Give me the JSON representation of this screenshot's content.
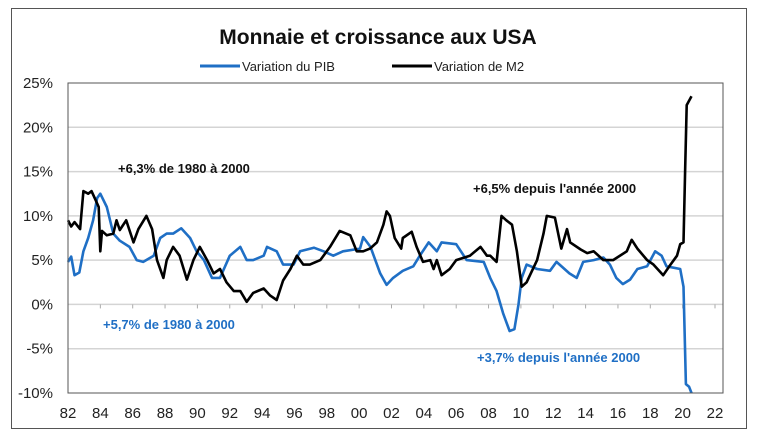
{
  "chart_data": {
    "type": "line",
    "title": "Monnaie et croissance aux USA",
    "xlabel": "",
    "ylabel": "",
    "xlim": [
      1982,
      2022
    ],
    "ylim": [
      -10,
      25
    ],
    "grid": true,
    "legend_placement": "top-center",
    "x_tick_labels": [
      "82",
      "84",
      "86",
      "88",
      "90",
      "92",
      "94",
      "96",
      "98",
      "00",
      "02",
      "04",
      "06",
      "08",
      "10",
      "12",
      "14",
      "16",
      "18",
      "20",
      "22"
    ],
    "y_tick_labels": [
      "25%",
      "20%",
      "15%",
      "10%",
      "5%",
      "0%",
      "-5%",
      "-10%"
    ],
    "y_tick_values": [
      25,
      20,
      15,
      10,
      5,
      0,
      -5,
      -10
    ],
    "series": [
      {
        "name": "Variation du PIB",
        "color": "#1f6fc5",
        "x": [
          1982.0,
          1982.2,
          1982.4,
          1982.7,
          1982.95,
          1983.25,
          1983.55,
          1983.8,
          1984.0,
          1984.4,
          1984.8,
          1985.2,
          1985.8,
          1986.25,
          1986.65,
          1987.3,
          1987.7,
          1988.1,
          1988.5,
          1989.0,
          1989.55,
          1989.95,
          1990.4,
          1990.9,
          1991.4,
          1992.0,
          1992.65,
          1993.05,
          1993.45,
          1994.1,
          1994.3,
          1994.9,
          1995.3,
          1995.95,
          1996.35,
          1997.2,
          1997.8,
          1998.4,
          1999.0,
          2000.05,
          2000.25,
          2000.7,
          2000.9,
          2001.3,
          2001.7,
          2002.1,
          2002.7,
          2003.35,
          2003.75,
          2004.3,
          2004.8,
          2005.1,
          2006.0,
          2006.65,
          2007.7,
          2008.1,
          2008.5,
          2008.9,
          2009.3,
          2009.6,
          2009.85,
          2010.05,
          2010.35,
          2011.0,
          2011.8,
          2012.2,
          2013.0,
          2013.45,
          2013.85,
          2014.5,
          2015.1,
          2015.5,
          2015.9,
          2016.3,
          2016.75,
          2017.2,
          2017.8,
          2018.3,
          2018.7,
          2019.0,
          2019.85,
          2020.05,
          2020.2,
          2020.4,
          2020.55
        ],
        "values": [
          4.8,
          5.4,
          3.3,
          3.6,
          6,
          7.5,
          9.5,
          12,
          12.5,
          11,
          8,
          7.2,
          6.5,
          5,
          4.8,
          5.5,
          7.5,
          8,
          8,
          8.6,
          7.5,
          6,
          5,
          3,
          3,
          5.5,
          6.5,
          5,
          5,
          5.5,
          6.5,
          6,
          4.5,
          4.5,
          6,
          6.4,
          6,
          5.5,
          6,
          6.3,
          7.6,
          6.5,
          5.5,
          3.5,
          2.2,
          3,
          3.8,
          4.3,
          5.5,
          7,
          6,
          7,
          6.8,
          5,
          4.8,
          3,
          1.5,
          -1,
          -3,
          -2.8,
          0,
          3,
          4.5,
          4,
          3.8,
          4.8,
          3.5,
          3,
          4.8,
          5,
          5.3,
          4.5,
          3,
          2.3,
          2.8,
          4,
          4.3,
          6,
          5.5,
          4.3,
          4,
          2,
          -9,
          -9.3,
          -10
        ]
      },
      {
        "name": "Variation de M2",
        "color": "#000000",
        "x": [
          1982.0,
          1982.2,
          1982.4,
          1982.75,
          1982.95,
          1983.25,
          1983.45,
          1983.65,
          1983.9,
          1984.0,
          1984.1,
          1984.4,
          1984.8,
          1985.0,
          1985.2,
          1985.6,
          1986.05,
          1986.35,
          1986.85,
          1987.2,
          1987.5,
          1987.9,
          1988.1,
          1988.5,
          1988.9,
          1989.35,
          1989.75,
          1990.15,
          1990.6,
          1991.0,
          1991.4,
          1991.8,
          1992.25,
          1992.65,
          1993.05,
          1993.45,
          1994.1,
          1994.5,
          1994.9,
          1995.3,
          1995.75,
          1996.15,
          1996.55,
          1996.95,
          1997.6,
          1998.2,
          1998.8,
          1999.45,
          1999.85,
          2000.25,
          2000.67,
          2001.1,
          2001.5,
          2001.7,
          2001.9,
          2002.2,
          2002.6,
          2002.7,
          2003.25,
          2003.55,
          2003.95,
          2004.4,
          2004.6,
          2004.8,
          2005.1,
          2005.6,
          2006.0,
          2006.85,
          2007.5,
          2007.9,
          2008.1,
          2008.5,
          2008.8,
          2009.1,
          2009.45,
          2009.75,
          2010.05,
          2010.35,
          2011.0,
          2011.4,
          2011.6,
          2012.1,
          2012.5,
          2012.85,
          2013.05,
          2013.7,
          2014.1,
          2014.5,
          2015.1,
          2015.7,
          2016.55,
          2016.85,
          2017.2,
          2017.8,
          2018.2,
          2018.8,
          2019.25,
          2019.65,
          2019.85,
          2020.05,
          2020.15,
          2020.25,
          2020.55
        ],
        "values": [
          9.5,
          8.8,
          9.3,
          8.5,
          12.8,
          12.5,
          12.8,
          12,
          11,
          6,
          8.3,
          7.8,
          8,
          9.5,
          8.4,
          9.5,
          7,
          8.5,
          10,
          8.5,
          5,
          3,
          5,
          6.5,
          5.5,
          2.8,
          5,
          6.5,
          5,
          3.5,
          4,
          2.5,
          1.5,
          1.5,
          0.3,
          1.3,
          1.8,
          1,
          0.5,
          2.7,
          4,
          5.5,
          4.5,
          4.5,
          5,
          6.5,
          8.3,
          7.8,
          6,
          6,
          6.3,
          7,
          9,
          10.5,
          10,
          7.5,
          6.3,
          7.5,
          8.2,
          6.5,
          4.8,
          5,
          4,
          5,
          3.3,
          4,
          5,
          5.5,
          6.5,
          5.5,
          5.5,
          4.8,
          10,
          9.5,
          9,
          6,
          2,
          2.5,
          5,
          8,
          10,
          9.8,
          6.3,
          8.5,
          7,
          6.2,
          5.8,
          6,
          5,
          5,
          6,
          7.3,
          6.3,
          5,
          4.5,
          3.3,
          4.5,
          5.5,
          6.8,
          7,
          15,
          22.5,
          23.5
        ]
      }
    ],
    "annotations": [
      {
        "text": "+6,3% de 1980 à 2000",
        "color": "#111111"
      },
      {
        "text": "+5,7% de 1980 à 2000",
        "color": "#1f6fc5"
      },
      {
        "text": "+6,5% depuis  l'année 2000",
        "color": "#111111"
      },
      {
        "text": "+3,7% depuis  l'année 2000",
        "color": "#1f6fc5"
      }
    ]
  }
}
